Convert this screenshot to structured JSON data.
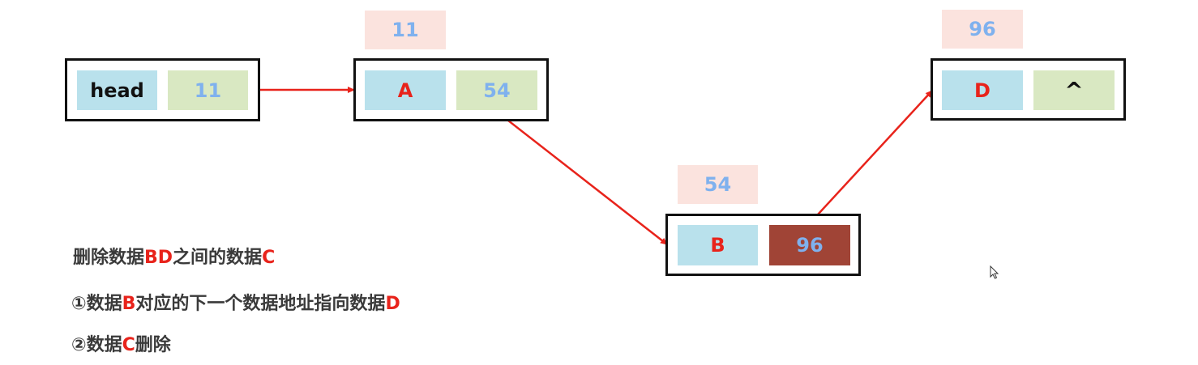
{
  "nodes": {
    "head": {
      "data": "head",
      "next": "11"
    },
    "a": {
      "address": "11",
      "data": "A",
      "next": "54"
    },
    "b": {
      "address": "54",
      "data": "B",
      "next": "96"
    },
    "d": {
      "address": "96",
      "data": "D",
      "next": "^"
    }
  },
  "notes": {
    "line1": {
      "p1": "删除数据",
      "h1": "BD",
      "p2": "之间的数据",
      "h2": "C"
    },
    "line2": {
      "p1": "①数据",
      "h1": "B",
      "p2": "对应的下一个数据地址指向数据",
      "h2": "D"
    },
    "line3": {
      "p1": "②数据",
      "h1": "C",
      "p2": "删除"
    }
  },
  "colors": {
    "arrow": "#e8231b",
    "data_cell": "#b9e1ec",
    "pointer_cell": "#d9e8c2",
    "highlighted_pointer": "#a04436",
    "address_label_bg": "#fbe3de",
    "address_text": "#7fb1ee",
    "emphasis_text": "#e8231b"
  },
  "icons": {
    "cursor": "mouse-pointer-icon"
  }
}
